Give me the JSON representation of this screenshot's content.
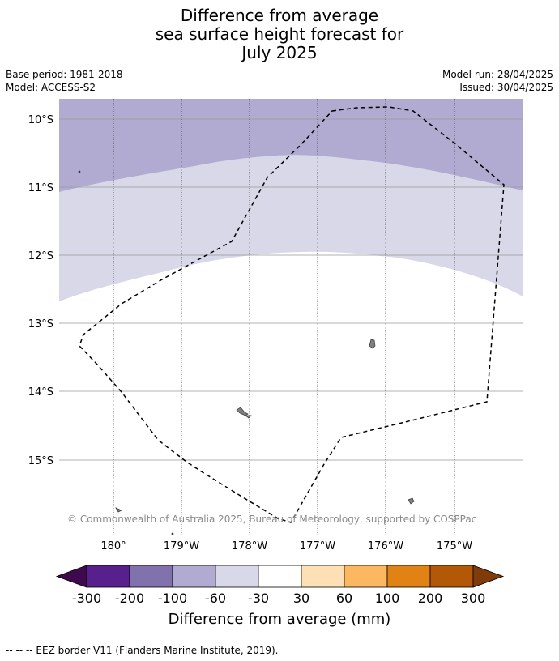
{
  "title": {
    "line1": "Difference from average",
    "line2": "sea surface height forecast for",
    "line3": "July 2025"
  },
  "meta": {
    "base_period": "Base period: 1981-2018",
    "model": "Model: ACCESS-S2",
    "model_run": "Model run: 28/04/2025",
    "issued": "Issued: 30/04/2025"
  },
  "map": {
    "lat_labels": [
      "10°S",
      "11°S",
      "12°S",
      "13°S",
      "14°S",
      "15°S"
    ],
    "lon_labels": [
      "180°",
      "179°W",
      "178°W",
      "177°W",
      "176°W",
      "175°W"
    ],
    "credit": "© Commonwealth of Australia 2025, Bureau of Meteorology, supported by COSPPac",
    "colors": {
      "band_minus_100_to_60": "#b1abd2",
      "band_minus_60_to_30": "#d8d8e9",
      "background": "#ffffff",
      "land": "#808080",
      "grid_lat": "#999999",
      "grid_lon": "#333333"
    }
  },
  "colorbar": {
    "title": "Difference from average (mm)",
    "tick_labels": [
      "-300",
      "-200",
      "-100",
      "-60",
      "-30",
      "30",
      "60",
      "100",
      "200",
      "300"
    ],
    "colors": [
      "#3f0a4d",
      "#58208c",
      "#8172ae",
      "#b1abd2",
      "#d8d8e9",
      "#ffffff",
      "#fee0b6",
      "#fbb861",
      "#e08214",
      "#b35806",
      "#7f3b08"
    ]
  },
  "footer": "--  --  -- EEZ border V11 (Flanders Marine Institute, 2019)."
}
